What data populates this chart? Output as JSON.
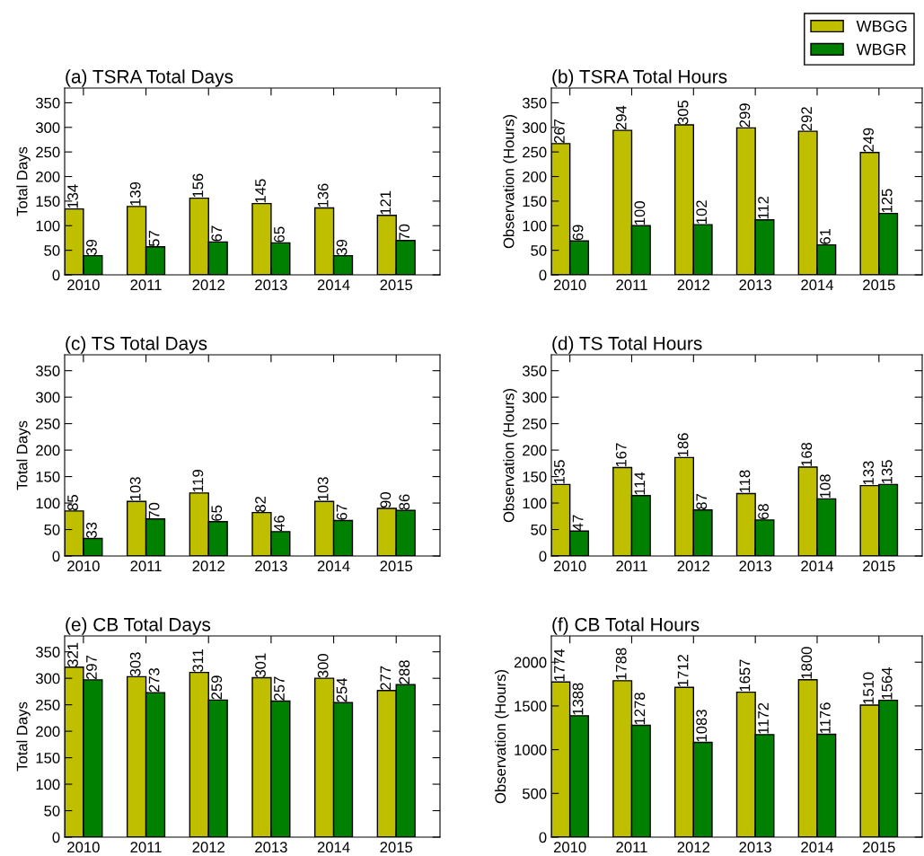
{
  "chart_data": [
    {
      "type": "bar",
      "title": "(a) TSRA Total Days",
      "ylabel": "Total Days",
      "categories": [
        "2010",
        "2011",
        "2012",
        "2013",
        "2014",
        "2015"
      ],
      "ylim": [
        0,
        380
      ],
      "yticks": [
        0,
        50,
        100,
        150,
        200,
        250,
        300,
        350
      ],
      "data_labels": true,
      "grid": false,
      "legend": "top right",
      "series": [
        {
          "name": "WBGG",
          "color": "#bfbf00",
          "values": [
            134,
            139,
            156,
            145,
            136,
            121
          ]
        },
        {
          "name": "WBGR",
          "color": "#008000",
          "values": [
            39,
            57,
            67,
            65,
            39,
            70
          ]
        }
      ]
    },
    {
      "type": "bar",
      "title": "(b) TSRA Total Hours",
      "ylabel": "Observation (Hours)",
      "categories": [
        "2010",
        "2011",
        "2012",
        "2013",
        "2014",
        "2015"
      ],
      "ylim": [
        0,
        380
      ],
      "yticks": [
        0,
        50,
        100,
        150,
        200,
        250,
        300,
        350
      ],
      "data_labels": true,
      "grid": false,
      "series": [
        {
          "color": "#bfbf00",
          "values": [
            267,
            294,
            305,
            299,
            292,
            249
          ]
        },
        {
          "color": "#008000",
          "values": [
            69,
            100,
            102,
            112,
            61,
            125
          ]
        }
      ]
    },
    {
      "type": "bar",
      "title": "(c) TS Total Days",
      "ylabel": "Total Days",
      "categories": [
        "2010",
        "2011",
        "2012",
        "2013",
        "2014",
        "2015"
      ],
      "ylim": [
        0,
        380
      ],
      "yticks": [
        0,
        50,
        100,
        150,
        200,
        250,
        300,
        350
      ],
      "data_labels": true,
      "grid": false,
      "series": [
        {
          "color": "#bfbf00",
          "values": [
            85,
            103,
            119,
            82,
            103,
            90
          ]
        },
        {
          "color": "#008000",
          "values": [
            33,
            70,
            65,
            46,
            67,
            86
          ]
        }
      ]
    },
    {
      "type": "bar",
      "title": "(d) TS Total Hours",
      "ylabel": "Observation (Hours)",
      "categories": [
        "2010",
        "2011",
        "2012",
        "2013",
        "2014",
        "2015"
      ],
      "ylim": [
        0,
        380
      ],
      "yticks": [
        0,
        50,
        100,
        150,
        200,
        250,
        300,
        350
      ],
      "data_labels": true,
      "grid": false,
      "series": [
        {
          "color": "#bfbf00",
          "values": [
            135,
            167,
            186,
            118,
            168,
            133
          ]
        },
        {
          "color": "#008000",
          "values": [
            47,
            114,
            87,
            68,
            108,
            135
          ]
        }
      ]
    },
    {
      "type": "bar",
      "title": "(e) CB Total Days",
      "ylabel": "Total Days",
      "categories": [
        "2010",
        "2011",
        "2012",
        "2013",
        "2014",
        "2015"
      ],
      "ylim": [
        0,
        380
      ],
      "yticks": [
        0,
        50,
        100,
        150,
        200,
        250,
        300,
        350
      ],
      "data_labels": true,
      "grid": false,
      "series": [
        {
          "color": "#bfbf00",
          "values": [
            321,
            303,
            311,
            301,
            300,
            277
          ]
        },
        {
          "color": "#008000",
          "values": [
            297,
            273,
            259,
            257,
            254,
            288
          ]
        }
      ]
    },
    {
      "type": "bar",
      "title": "(f) CB Total Hours",
      "ylabel": "Observation (Hours)",
      "categories": [
        "2010",
        "2011",
        "2012",
        "2013",
        "2014",
        "2015"
      ],
      "ylim": [
        0,
        2300
      ],
      "yticks": [
        0,
        500,
        1000,
        1500,
        2000
      ],
      "data_labels": true,
      "grid": false,
      "series": [
        {
          "color": "#bfbf00",
          "values": [
            1774,
            1788,
            1712,
            1657,
            1800,
            1510
          ]
        },
        {
          "color": "#008000",
          "values": [
            1388,
            1278,
            1083,
            1172,
            1176,
            1564
          ]
        }
      ]
    }
  ]
}
